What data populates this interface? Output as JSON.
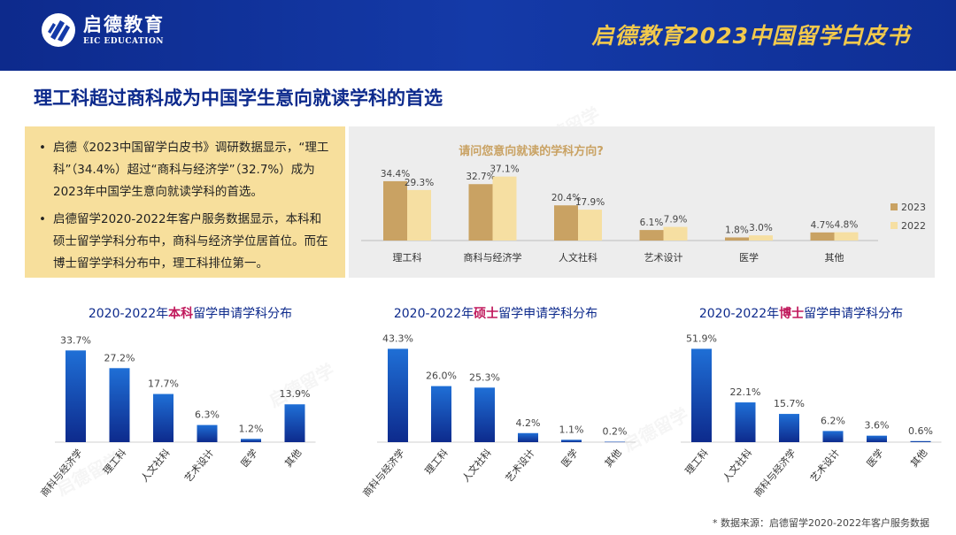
{
  "header": {
    "logo_cn": "启德教育",
    "logo_en": "EIC EDUCATION",
    "report_title": "启德教育2023中国留学白皮书"
  },
  "page_title": "理工科超过商科成为中国学生意向就读学科的首选",
  "info": {
    "bullets": [
      "启德《2023中国留学白皮书》调研数据显示，“理工科”（34.4%）超过“商科与经济学”（32.7%）成为2023年中国学生意向就读学科的首选。",
      "启德留学2020-2022年客户服务数据显示，本科和硕士留学学科分布中，商科与经济学位居首位。而在博士留学学科分布中，理工科排位第一。"
    ]
  },
  "colors": {
    "header_bg": "#0d2a8c",
    "gold": "#f2c94c",
    "series_2023": "#c9a263",
    "series_2022": "#f6dfa2",
    "blue_bar_top": "#1f6fd6",
    "blue_bar_bottom": "#0d2a8c",
    "highlight": "#c0185b"
  },
  "titles": {
    "bachelor_prefix": "2020-2022年",
    "bachelor_hl": "本科",
    "bachelor_suffix": "留学申请学科分布",
    "master_prefix": "2020-2022年",
    "master_hl": "硕士",
    "master_suffix": "留学申请学科分布",
    "phd_prefix": "2020-2022年",
    "phd_hl": "博士",
    "phd_suffix": "留学申请学科分布"
  },
  "footnote": "* 数据来源：启德留学2020-2022年客户服务数据",
  "chart_data": [
    {
      "type": "bar",
      "title": "请问您意向就读的学科方向?",
      "categories": [
        "理工科",
        "商科与经济学",
        "人文社科",
        "艺术设计",
        "医学",
        "其他"
      ],
      "series": [
        {
          "name": "2023",
          "values": [
            34.4,
            32.7,
            20.4,
            6.1,
            1.8,
            4.7
          ]
        },
        {
          "name": "2022",
          "values": [
            29.3,
            37.1,
            17.9,
            7.9,
            3.0,
            4.8
          ]
        }
      ],
      "value_suffix": "%",
      "legend": "right",
      "grid": false
    },
    {
      "type": "bar",
      "categories": [
        "商科与经济学",
        "理工科",
        "人文社科",
        "艺术设计",
        "医学",
        "其他"
      ],
      "values": [
        33.7,
        27.2,
        17.7,
        6.3,
        1.2,
        13.9
      ],
      "value_suffix": "%",
      "grid": false
    },
    {
      "type": "bar",
      "categories": [
        "商科与经济学",
        "理工科",
        "人文社科",
        "艺术设计",
        "医学",
        "其他"
      ],
      "values": [
        43.3,
        26.0,
        25.3,
        4.2,
        1.1,
        0.2
      ],
      "value_suffix": "%",
      "grid": false
    },
    {
      "type": "bar",
      "categories": [
        "理工科",
        "人文社科",
        "商科与经济学",
        "艺术设计",
        "医学",
        "其他"
      ],
      "values": [
        51.9,
        22.1,
        15.7,
        6.2,
        3.6,
        0.6
      ],
      "value_suffix": "%",
      "grid": false
    }
  ]
}
